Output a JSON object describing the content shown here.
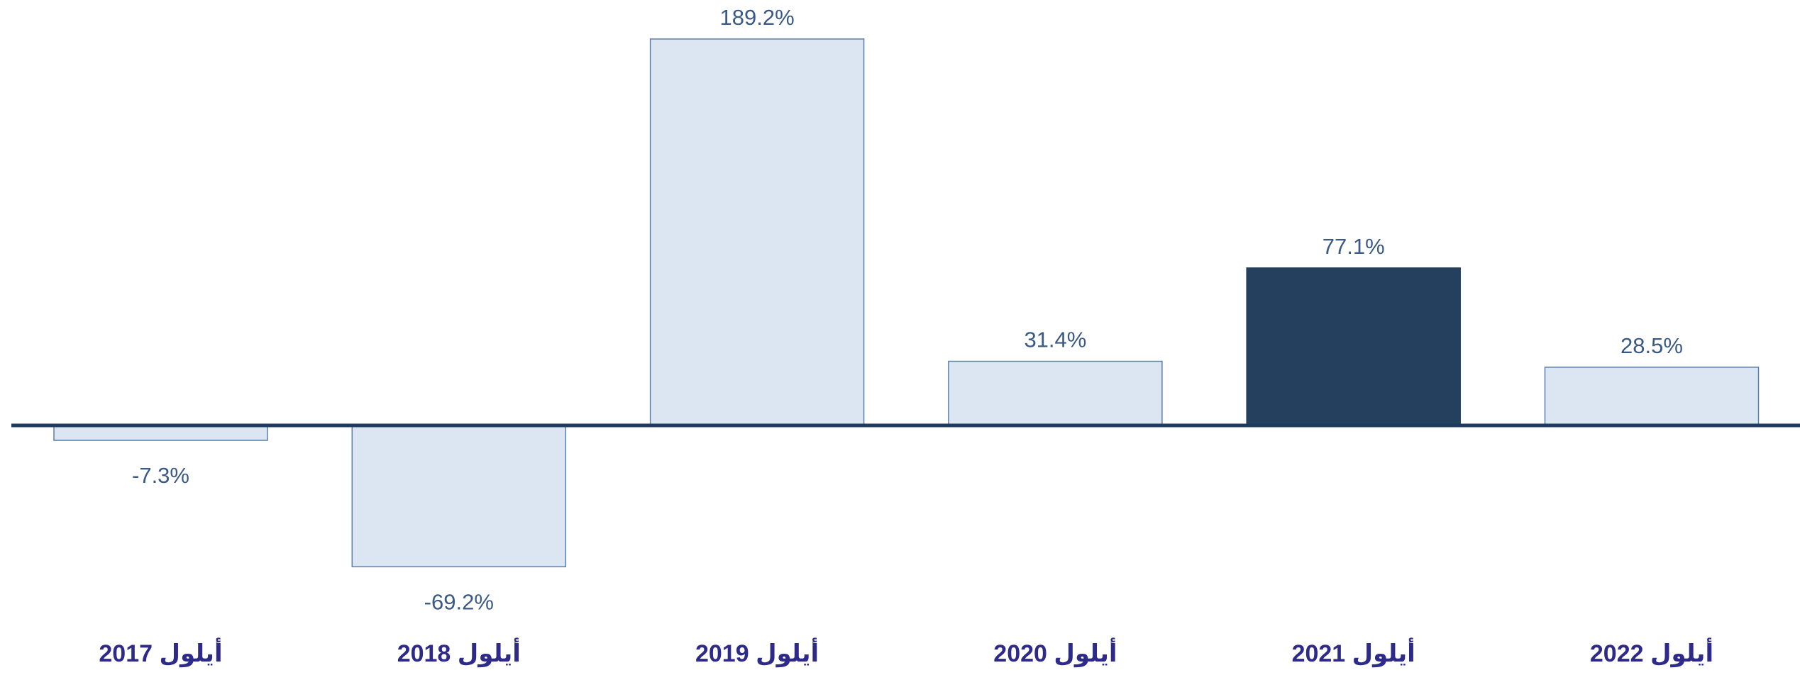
{
  "chart_data": {
    "type": "bar",
    "categories": [
      "أيلول 2017",
      "أيلول 2018",
      "أيلول 2019",
      "أيلول 2020",
      "أيلول 2021",
      "أيلول 2022"
    ],
    "values": [
      -7.3,
      -69.2,
      189.2,
      31.4,
      77.1,
      28.5
    ],
    "value_labels": [
      "-7.3%",
      "-69.2%",
      "189.2%",
      "31.4%",
      "77.1%",
      "28.5%"
    ],
    "colors": [
      "#dce6f2",
      "#dce6f2",
      "#dce6f2",
      "#dce6f2",
      "#253f5f",
      "#dce6f2"
    ]
  }
}
